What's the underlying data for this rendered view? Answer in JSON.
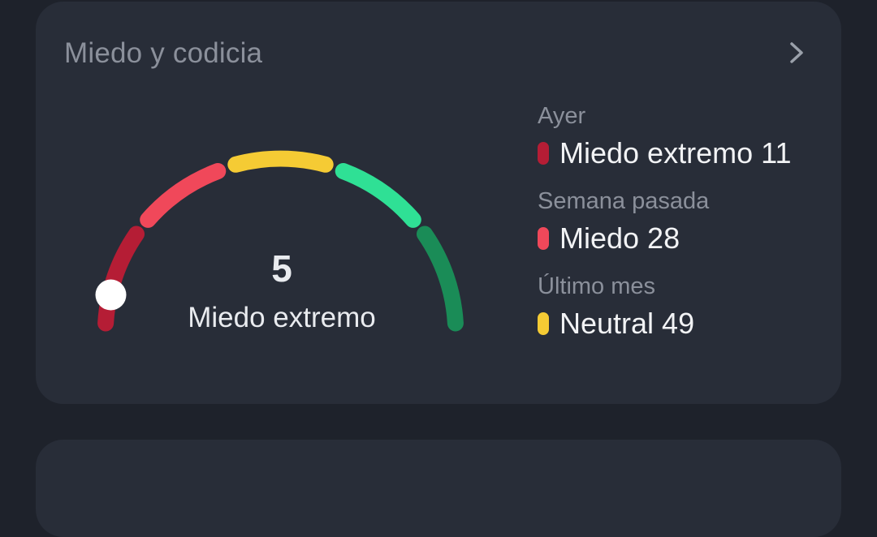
{
  "card": {
    "title": "Miedo y codicia"
  },
  "gauge": {
    "value": "5",
    "label": "Miedo extremo",
    "level": 5,
    "max": 100,
    "segment_colors": [
      "#b51d35",
      "#f0485a",
      "#f5cb34",
      "#2fe095",
      "#1a8c57"
    ]
  },
  "history": [
    {
      "period": "Ayer",
      "text": "Miedo extremo 11",
      "color": "#b51d35"
    },
    {
      "period": "Semana pasada",
      "text": "Miedo 28",
      "color": "#f0485a"
    },
    {
      "period": "Último mes",
      "text": "Neutral 49",
      "color": "#f5cb34"
    }
  ]
}
